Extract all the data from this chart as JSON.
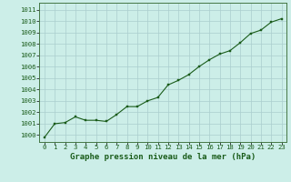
{
  "x": [
    0,
    1,
    2,
    3,
    4,
    5,
    6,
    7,
    8,
    9,
    10,
    11,
    12,
    13,
    14,
    15,
    16,
    17,
    18,
    19,
    20,
    21,
    22,
    23
  ],
  "y": [
    999.8,
    1001.0,
    1001.1,
    1001.6,
    1001.3,
    1001.3,
    1001.2,
    1001.8,
    1002.5,
    1002.5,
    1003.0,
    1003.3,
    1004.4,
    1004.8,
    1005.3,
    1006.0,
    1006.6,
    1007.1,
    1007.4,
    1008.1,
    1008.9,
    1009.2,
    1009.9,
    1010.2
  ],
  "line_color": "#1a5c1a",
  "marker_color": "#1a5c1a",
  "bg_color": "#cceee8",
  "grid_color": "#aacece",
  "title": "Graphe pression niveau de la mer (hPa)",
  "ylim_min": 999.4,
  "ylim_max": 1011.6,
  "ytick_values": [
    1000,
    1001,
    1002,
    1003,
    1004,
    1005,
    1006,
    1007,
    1008,
    1009,
    1010,
    1011
  ],
  "xtick_values": [
    0,
    1,
    2,
    3,
    4,
    5,
    6,
    7,
    8,
    9,
    10,
    11,
    12,
    13,
    14,
    15,
    16,
    17,
    18,
    19,
    20,
    21,
    22,
    23
  ],
  "title_fontsize": 6.5,
  "tick_fontsize": 5.2,
  "marker_size": 2.0,
  "line_width": 0.8
}
